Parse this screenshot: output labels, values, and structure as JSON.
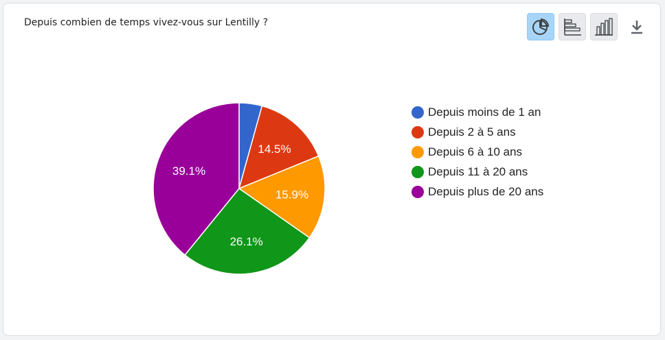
{
  "question": {
    "title": "Depuis combien de temps vivez-vous sur Lentilly ?"
  },
  "toolbar": {
    "buttons": [
      {
        "name": "pie-chart",
        "icon": "pie-chart-icon",
        "active": true
      },
      {
        "name": "horizontal-bar-chart",
        "icon": "horizontal-bar-chart-icon",
        "active": false
      },
      {
        "name": "vertical-bar-chart",
        "icon": "vertical-bar-chart-icon",
        "active": false
      }
    ],
    "download_icon": "download-icon"
  },
  "chart_data": {
    "type": "pie",
    "legend_position": "right",
    "slices": [
      {
        "name": "Depuis moins de 1 an",
        "value": 4.3,
        "label": "",
        "color": "#3366cc"
      },
      {
        "name": "Depuis 2 à 5 ans",
        "value": 14.5,
        "label": "14.5%",
        "color": "#dc3912"
      },
      {
        "name": "Depuis 6 à 10 ans",
        "value": 15.9,
        "label": "15.9%",
        "color": "#ff9900"
      },
      {
        "name": "Depuis 11 à 20 ans",
        "value": 26.1,
        "label": "26.1%",
        "color": "#109618"
      },
      {
        "name": "Depuis plus de 20 ans",
        "value": 39.1,
        "label": "39.1%",
        "color": "#990099"
      }
    ]
  }
}
